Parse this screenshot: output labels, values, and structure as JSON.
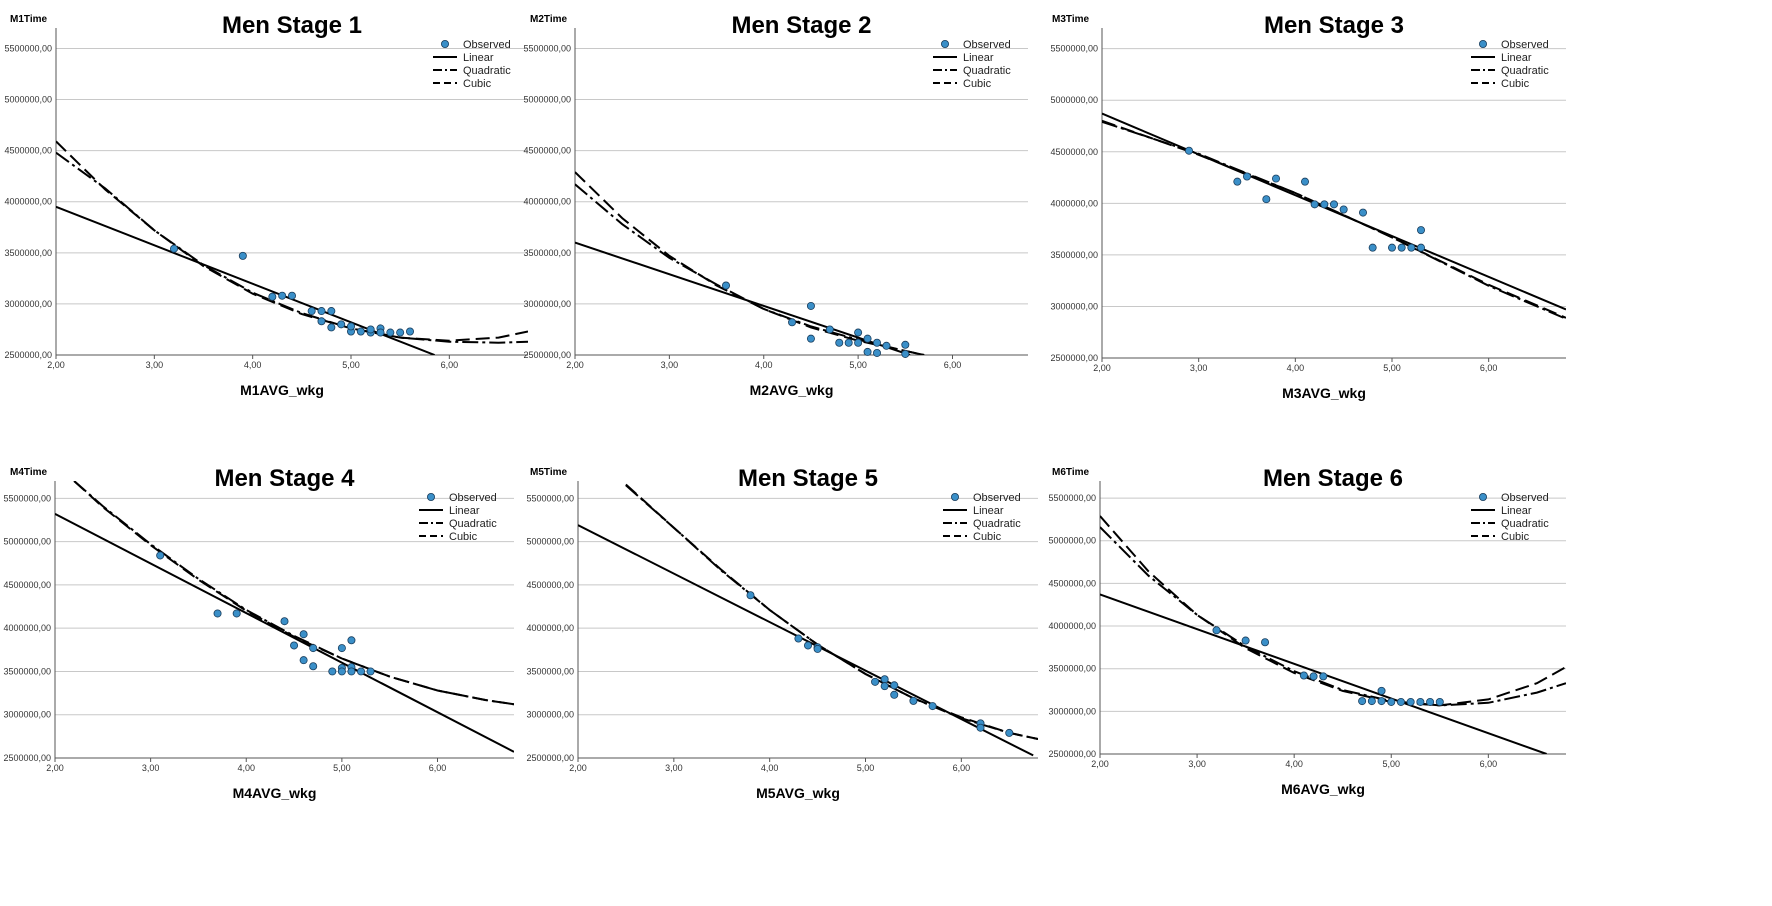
{
  "chart_data": [
    {
      "type": "scatter",
      "title": "Men Stage 1",
      "ylabel": "M1Time",
      "xlabel": "M1AVG_wkg",
      "xlim": [
        2.0,
        6.8
      ],
      "ylim": [
        2500000,
        5700000
      ],
      "x_ticks": [
        "2,00",
        "3,00",
        "4,00",
        "5,00",
        "6,00"
      ],
      "y_ticks": [
        "2500000,00",
        "3000000,00",
        "3500000,00",
        "4000000,00",
        "4500000,00",
        "5000000,00",
        "5500000,00"
      ],
      "legend": [
        "Observed",
        "Linear",
        "Quadratic",
        "Cubic"
      ],
      "legend_position": "top-right",
      "grid": "horizontal",
      "point_color": "#3a8fc8",
      "observed": [
        [
          3.2,
          3540000
        ],
        [
          3.9,
          3470000
        ],
        [
          4.2,
          3070000
        ],
        [
          4.3,
          3080000
        ],
        [
          4.4,
          3080000
        ],
        [
          4.6,
          2930000
        ],
        [
          4.7,
          2930000
        ],
        [
          4.7,
          2830000
        ],
        [
          4.8,
          2930000
        ],
        [
          4.8,
          2770000
        ],
        [
          4.9,
          2800000
        ],
        [
          5.0,
          2730000
        ],
        [
          5.0,
          2780000
        ],
        [
          5.1,
          2730000
        ],
        [
          5.2,
          2720000
        ],
        [
          5.2,
          2750000
        ],
        [
          5.3,
          2760000
        ],
        [
          5.3,
          2720000
        ],
        [
          5.4,
          2720000
        ],
        [
          5.5,
          2720000
        ],
        [
          5.6,
          2730000
        ]
      ],
      "linear": {
        "x": [
          2.0,
          5.85
        ],
        "y": [
          3950000,
          2500000
        ]
      },
      "quadratic": {
        "x": [
          2.0,
          2.5,
          3.0,
          3.5,
          4.0,
          4.5,
          5.0,
          5.5,
          6.0,
          6.5,
          6.8
        ],
        "y": [
          4480000,
          4130000,
          3720000,
          3380000,
          3110000,
          2910000,
          2760000,
          2670000,
          2630000,
          2620000,
          2630000
        ]
      },
      "cubic": {
        "x": [
          2.0,
          2.5,
          3.0,
          3.5,
          4.0,
          4.5,
          5.0,
          5.5,
          6.0,
          6.5,
          6.8
        ],
        "y": [
          4590000,
          4120000,
          3720000,
          3370000,
          3100000,
          2900000,
          2760000,
          2670000,
          2640000,
          2670000,
          2730000
        ]
      }
    },
    {
      "type": "scatter",
      "title": "Men Stage 2",
      "ylabel": "M2Time",
      "xlabel": "M2AVG_wkg",
      "xlim": [
        2.0,
        6.8
      ],
      "ylim": [
        2500000,
        5700000
      ],
      "x_ticks": [
        "2,00",
        "3,00",
        "4,00",
        "5,00",
        "6,00"
      ],
      "y_ticks": [
        "2500000,00",
        "3000000,00",
        "3500000,00",
        "4000000,00",
        "4500000,00",
        "5000000,00",
        "5500000,00"
      ],
      "legend": [
        "Observed",
        "Linear",
        "Quadratic",
        "Cubic"
      ],
      "legend_position": "top-right",
      "grid": "horizontal",
      "point_color": "#3a8fc8",
      "observed": [
        [
          3.6,
          3180000
        ],
        [
          4.3,
          2820000
        ],
        [
          4.5,
          2980000
        ],
        [
          4.5,
          2660000
        ],
        [
          4.7,
          2750000
        ],
        [
          4.8,
          2620000
        ],
        [
          4.9,
          2620000
        ],
        [
          5.0,
          2720000
        ],
        [
          5.0,
          2620000
        ],
        [
          5.1,
          2660000
        ],
        [
          5.1,
          2530000
        ],
        [
          5.2,
          2620000
        ],
        [
          5.2,
          2520000
        ],
        [
          5.3,
          2590000
        ],
        [
          5.5,
          2600000
        ],
        [
          5.5,
          2510000
        ]
      ],
      "linear": {
        "x": [
          2.0,
          5.55
        ],
        "y": [
          3600000,
          2500000
        ]
      },
      "quadratic": {
        "x": [
          2.0,
          2.5,
          3.0,
          3.5,
          4.0,
          4.5,
          5.0,
          5.5,
          5.7
        ],
        "y": [
          4170000,
          3780000,
          3450000,
          3190000,
          2950000,
          2780000,
          2650000,
          2540000,
          2500000
        ]
      },
      "cubic": {
        "x": [
          2.0,
          2.5,
          3.0,
          3.5,
          4.0,
          4.5,
          5.0,
          5.5,
          5.7
        ],
        "y": [
          4290000,
          3840000,
          3470000,
          3180000,
          2950000,
          2770000,
          2640000,
          2540000,
          2500000
        ]
      }
    },
    {
      "type": "scatter",
      "title": "Men Stage 3",
      "ylabel": "M3Time",
      "xlabel": "M3AVG_wkg",
      "xlim": [
        2.0,
        6.8
      ],
      "ylim": [
        2500000,
        5700000
      ],
      "x_ticks": [
        "2,00",
        "3,00",
        "4,00",
        "5,00",
        "6,00"
      ],
      "y_ticks": [
        "2500000,00",
        "3000000,00",
        "3500000,00",
        "4000000,00",
        "4500000,00",
        "5000000,00",
        "5500000,00"
      ],
      "legend": [
        "Observed",
        "Linear",
        "Quadratic",
        "Cubic"
      ],
      "legend_position": "top-right",
      "grid": "horizontal",
      "point_color": "#3a8fc8",
      "observed": [
        [
          2.9,
          4510000
        ],
        [
          3.4,
          4210000
        ],
        [
          3.5,
          4260000
        ],
        [
          3.7,
          4040000
        ],
        [
          3.8,
          4240000
        ],
        [
          4.1,
          4210000
        ],
        [
          4.2,
          3990000
        ],
        [
          4.3,
          3990000
        ],
        [
          4.4,
          3990000
        ],
        [
          4.5,
          3940000
        ],
        [
          4.7,
          3910000
        ],
        [
          4.8,
          3570000
        ],
        [
          5.0,
          3570000
        ],
        [
          5.1,
          3570000
        ],
        [
          5.2,
          3570000
        ],
        [
          5.3,
          3740000
        ],
        [
          5.3,
          3570000
        ]
      ],
      "linear": {
        "x": [
          2.0,
          6.8
        ],
        "y": [
          4870000,
          2970000
        ]
      },
      "quadratic": {
        "x": [
          2.0,
          3.0,
          4.0,
          5.0,
          6.0,
          6.8
        ],
        "y": [
          4790000,
          4480000,
          4100000,
          3670000,
          3200000,
          2880000
        ]
      },
      "cubic": {
        "x": [
          2.0,
          3.0,
          4.0,
          5.0,
          6.0,
          6.8
        ],
        "y": [
          4800000,
          4470000,
          4100000,
          3670000,
          3210000,
          2890000
        ]
      }
    },
    {
      "type": "scatter",
      "title": "Men Stage 4",
      "ylabel": "M4Time",
      "xlabel": "M4AVG_wkg",
      "xlim": [
        2.0,
        6.8
      ],
      "ylim": [
        2500000,
        5700000
      ],
      "x_ticks": [
        "2,00",
        "3,00",
        "4,00",
        "5,00",
        "6,00"
      ],
      "y_ticks": [
        "2500000,00",
        "3000000,00",
        "3500000,00",
        "4000000,00",
        "4500000,00",
        "5000000,00",
        "5500000,00"
      ],
      "legend": [
        "Observed",
        "Linear",
        "Quadratic",
        "Cubic"
      ],
      "legend_position": "top-right",
      "grid": "horizontal",
      "point_color": "#3a8fc8",
      "observed": [
        [
          3.1,
          4840000
        ],
        [
          3.7,
          4170000
        ],
        [
          3.9,
          4170000
        ],
        [
          4.4,
          4080000
        ],
        [
          4.5,
          3800000
        ],
        [
          4.6,
          3930000
        ],
        [
          4.6,
          3630000
        ],
        [
          4.7,
          3770000
        ],
        [
          4.7,
          3560000
        ],
        [
          4.9,
          3500000
        ],
        [
          5.0,
          3770000
        ],
        [
          5.0,
          3540000
        ],
        [
          5.0,
          3500000
        ],
        [
          5.1,
          3860000
        ],
        [
          5.1,
          3550000
        ],
        [
          5.1,
          3500000
        ],
        [
          5.2,
          3500000
        ],
        [
          5.3,
          3500000
        ]
      ],
      "linear": {
        "x": [
          2.0,
          6.8
        ],
        "y": [
          5320000,
          2570000
        ]
      },
      "quadratic": {
        "x": [
          2.2,
          2.5,
          3.0,
          3.5,
          4.0,
          4.5,
          5.0,
          5.5,
          6.0,
          6.5,
          6.8
        ],
        "y": [
          5700000,
          5410000,
          4970000,
          4570000,
          4210000,
          3910000,
          3650000,
          3440000,
          3280000,
          3170000,
          3120000
        ]
      },
      "cubic": {
        "x": [
          2.2,
          2.5,
          3.0,
          3.5,
          4.0,
          4.5,
          5.0,
          5.5,
          6.0,
          6.5,
          6.8
        ],
        "y": [
          5700000,
          5400000,
          4960000,
          4560000,
          4200000,
          3900000,
          3650000,
          3440000,
          3280000,
          3170000,
          3120000
        ]
      }
    },
    {
      "type": "scatter",
      "title": "Men Stage 5",
      "ylabel": "M5Time",
      "xlabel": "M5AVG_wkg",
      "xlim": [
        2.0,
        6.8
      ],
      "ylim": [
        2500000,
        5700000
      ],
      "x_ticks": [
        "2,00",
        "3,00",
        "4,00",
        "5,00",
        "6,00"
      ],
      "y_ticks": [
        "2500000,00",
        "3000000,00",
        "3500000,00",
        "4000000,00",
        "4500000,00",
        "5000000,00",
        "5500000,00"
      ],
      "legend": [
        "Observed",
        "Linear",
        "Quadratic",
        "Cubic"
      ],
      "legend_position": "top-right",
      "grid": "horizontal",
      "point_color": "#3a8fc8",
      "observed": [
        [
          3.8,
          4380000
        ],
        [
          4.3,
          3880000
        ],
        [
          4.4,
          3800000
        ],
        [
          4.5,
          3780000
        ],
        [
          4.5,
          3760000
        ],
        [
          5.1,
          3380000
        ],
        [
          5.2,
          3410000
        ],
        [
          5.2,
          3330000
        ],
        [
          5.3,
          3340000
        ],
        [
          5.3,
          3230000
        ],
        [
          5.5,
          3160000
        ],
        [
          5.7,
          3100000
        ],
        [
          6.2,
          2900000
        ],
        [
          6.2,
          2850000
        ],
        [
          6.5,
          2790000
        ]
      ],
      "linear": {
        "x": [
          2.0,
          6.75
        ],
        "y": [
          5190000,
          2530000
        ]
      },
      "quadratic": {
        "x": [
          2.5,
          3.0,
          3.5,
          4.0,
          4.5,
          5.0,
          5.5,
          6.0,
          6.5,
          6.8
        ],
        "y": [
          5650000,
          5160000,
          4660000,
          4210000,
          3810000,
          3470000,
          3190000,
          2960000,
          2790000,
          2720000
        ]
      },
      "cubic": {
        "x": [
          2.5,
          3.0,
          3.5,
          4.0,
          4.5,
          5.0,
          5.5,
          6.0,
          6.5,
          6.8
        ],
        "y": [
          5660000,
          5160000,
          4670000,
          4210000,
          3810000,
          3470000,
          3190000,
          2970000,
          2790000,
          2720000
        ]
      }
    },
    {
      "type": "scatter",
      "title": "Men Stage 6",
      "ylabel": "M6Time",
      "xlabel": "M6AVG_wkg",
      "xlim": [
        2.0,
        6.8
      ],
      "ylim": [
        2500000,
        5700000
      ],
      "x_ticks": [
        "2,00",
        "3,00",
        "4,00",
        "5,00",
        "6,00"
      ],
      "y_ticks": [
        "2500000,00",
        "3000000,00",
        "3500000,00",
        "4000000,00",
        "4500000,00",
        "5000000,00",
        "5500000,00"
      ],
      "legend": [
        "Observed",
        "Linear",
        "Quadratic",
        "Cubic"
      ],
      "legend_position": "top-right",
      "grid": "horizontal",
      "point_color": "#3a8fc8",
      "observed": [
        [
          3.2,
          3950000
        ],
        [
          3.5,
          3830000
        ],
        [
          3.7,
          3810000
        ],
        [
          4.1,
          3420000
        ],
        [
          4.2,
          3410000
        ],
        [
          4.3,
          3410000
        ],
        [
          4.7,
          3120000
        ],
        [
          4.8,
          3120000
        ],
        [
          4.9,
          3240000
        ],
        [
          4.9,
          3120000
        ],
        [
          5.0,
          3110000
        ],
        [
          5.1,
          3110000
        ],
        [
          5.2,
          3110000
        ],
        [
          5.3,
          3110000
        ],
        [
          5.4,
          3110000
        ],
        [
          5.5,
          3110000
        ]
      ],
      "linear": {
        "x": [
          2.0,
          6.6
        ],
        "y": [
          4370000,
          2500000
        ]
      },
      "quadratic": {
        "x": [
          2.0,
          2.5,
          3.0,
          3.5,
          4.0,
          4.5,
          5.0,
          5.5,
          6.0,
          6.5,
          6.8
        ],
        "y": [
          5160000,
          4590000,
          4130000,
          3760000,
          3470000,
          3250000,
          3120000,
          3070000,
          3100000,
          3220000,
          3330000
        ]
      },
      "cubic": {
        "x": [
          2.0,
          2.5,
          3.0,
          3.5,
          4.0,
          4.5,
          5.0,
          5.5,
          6.0,
          6.5,
          6.8
        ],
        "y": [
          5290000,
          4640000,
          4130000,
          3740000,
          3450000,
          3240000,
          3110000,
          3070000,
          3140000,
          3330000,
          3520000
        ]
      }
    }
  ]
}
